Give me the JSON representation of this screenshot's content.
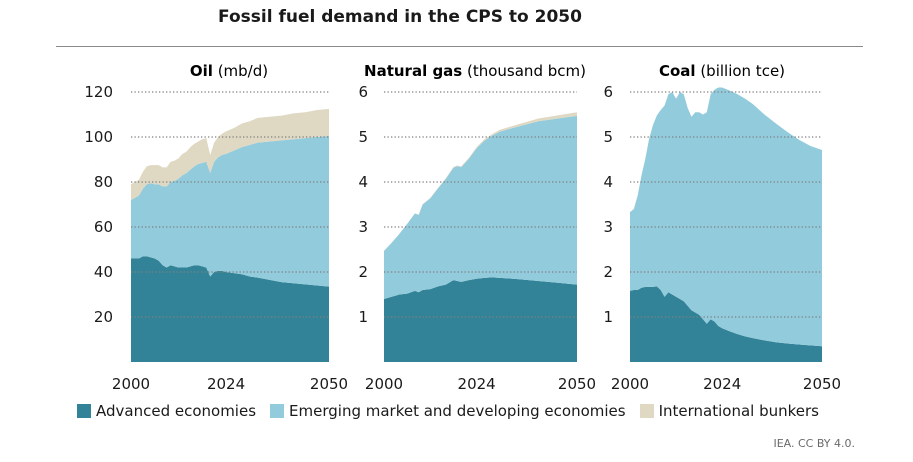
{
  "figure": {
    "title": "Fossil fuel demand in the CPS to 2050",
    "source": "IEA. CC BY 4.0."
  },
  "colors": {
    "advanced": "#338398",
    "emerging": "#92cbdc",
    "bunkers": "#dfd8c3",
    "grid": "#7f7f7f"
  },
  "chart_data": [
    {
      "type": "area",
      "title_bold": "Oil",
      "title_unit": "(mb/d)",
      "ylim": [
        0,
        120
      ],
      "yticks": [
        20,
        40,
        60,
        80,
        100,
        120
      ],
      "ytick_labels": [
        "20",
        "40",
        "60",
        "80",
        "100",
        "120"
      ],
      "xticks": [
        2000,
        2024,
        2050
      ],
      "xtick_labels": [
        "2000",
        "2024",
        "2050"
      ],
      "x": [
        2000,
        2001,
        2002,
        2003,
        2004,
        2005,
        2006,
        2007,
        2008,
        2009,
        2010,
        2011,
        2012,
        2013,
        2014,
        2015,
        2016,
        2017,
        2018,
        2019,
        2020,
        2021,
        2022,
        2023,
        2024,
        2026,
        2028,
        2030,
        2032,
        2035,
        2038,
        2041,
        2044,
        2047,
        2050
      ],
      "series": [
        {
          "name": "Advanced economies",
          "values": [
            46,
            46,
            46,
            47,
            47,
            46.5,
            46,
            45,
            43,
            42,
            43,
            42.5,
            42,
            42,
            42,
            42.5,
            43,
            43,
            42.5,
            42,
            38,
            40,
            40.5,
            40.5,
            40,
            39.5,
            39,
            38,
            37.5,
            36.5,
            35.5,
            35,
            34.5,
            34,
            33.5
          ]
        },
        {
          "name": "Emerging market and developing economies",
          "values": [
            26,
            27,
            28,
            30,
            32,
            33,
            33,
            34,
            35,
            36,
            37,
            38,
            39.5,
            41,
            42,
            43,
            44,
            45,
            46,
            47,
            46,
            49,
            50.5,
            51.5,
            52.5,
            54.5,
            56.5,
            58.5,
            60,
            61.5,
            63,
            64,
            65,
            66,
            67
          ]
        },
        {
          "name": "International bunkers",
          "values": [
            7,
            7,
            7,
            7.5,
            8,
            8,
            8.5,
            8.5,
            8.5,
            8.5,
            9,
            9,
            9,
            9.5,
            9.5,
            10,
            10,
            10,
            10.5,
            10.5,
            8,
            8.5,
            9,
            9.5,
            10,
            10,
            10.5,
            10.5,
            11,
            11,
            11,
            11.5,
            11.5,
            12,
            12
          ]
        }
      ]
    },
    {
      "type": "area",
      "title_bold": "Natural gas",
      "title_unit": "(thousand bcm)",
      "ylim": [
        0,
        6
      ],
      "yticks": [
        1,
        2,
        3,
        4,
        5,
        6
      ],
      "ytick_labels": [
        "1",
        "2",
        "3",
        "4",
        "5",
        "6"
      ],
      "xticks": [
        2000,
        2024,
        2050
      ],
      "xtick_labels": [
        "2000",
        "2024",
        "2050"
      ],
      "x": [
        2000,
        2002,
        2004,
        2006,
        2008,
        2009,
        2010,
        2012,
        2014,
        2016,
        2018,
        2019,
        2020,
        2022,
        2024,
        2026,
        2028,
        2030,
        2035,
        2040,
        2045,
        2050
      ],
      "series": [
        {
          "name": "Advanced economies",
          "values": [
            1.4,
            1.45,
            1.5,
            1.52,
            1.58,
            1.55,
            1.6,
            1.62,
            1.68,
            1.72,
            1.82,
            1.8,
            1.78,
            1.82,
            1.85,
            1.87,
            1.88,
            1.87,
            1.84,
            1.8,
            1.76,
            1.72
          ]
        },
        {
          "name": "Emerging market and developing economies",
          "values": [
            1.07,
            1.2,
            1.35,
            1.55,
            1.72,
            1.72,
            1.9,
            2.02,
            2.18,
            2.35,
            2.5,
            2.55,
            2.55,
            2.7,
            2.9,
            3.05,
            3.15,
            3.25,
            3.4,
            3.55,
            3.65,
            3.75
          ]
        },
        {
          "name": "International bunkers",
          "values": [
            0.001,
            0.001,
            0.002,
            0.003,
            0.004,
            0.005,
            0.006,
            0.008,
            0.01,
            0.012,
            0.015,
            0.016,
            0.016,
            0.02,
            0.025,
            0.03,
            0.035,
            0.04,
            0.05,
            0.06,
            0.07,
            0.08
          ]
        }
      ]
    },
    {
      "type": "area",
      "title_bold": "Coal",
      "title_unit": "(billion tce)",
      "ylim": [
        0,
        6
      ],
      "yticks": [
        1,
        2,
        3,
        4,
        5,
        6
      ],
      "ytick_labels": [
        "1",
        "2",
        "3",
        "4",
        "5",
        "6"
      ],
      "xticks": [
        2000,
        2024,
        2050
      ],
      "xtick_labels": [
        "2000",
        "2024",
        "2050"
      ],
      "x": [
        2000,
        2001,
        2002,
        2003,
        2004,
        2005,
        2006,
        2007,
        2008,
        2009,
        2010,
        2011,
        2012,
        2013,
        2014,
        2015,
        2016,
        2017,
        2018,
        2019,
        2020,
        2021,
        2022,
        2023,
        2024,
        2026,
        2028,
        2030,
        2032,
        2035,
        2038,
        2041,
        2044,
        2047,
        2050
      ],
      "series": [
        {
          "name": "Advanced economies",
          "values": [
            1.58,
            1.6,
            1.6,
            1.65,
            1.67,
            1.67,
            1.67,
            1.68,
            1.6,
            1.45,
            1.55,
            1.5,
            1.45,
            1.4,
            1.35,
            1.25,
            1.15,
            1.1,
            1.05,
            0.95,
            0.85,
            0.95,
            0.9,
            0.8,
            0.75,
            0.68,
            0.62,
            0.57,
            0.53,
            0.48,
            0.44,
            0.41,
            0.39,
            0.37,
            0.35
          ]
        },
        {
          "name": "Emerging market and developing economies",
          "values": [
            1.75,
            1.8,
            2.1,
            2.5,
            2.85,
            3.3,
            3.6,
            3.8,
            4.0,
            4.25,
            4.4,
            4.5,
            4.4,
            4.6,
            4.6,
            4.4,
            4.3,
            4.45,
            4.5,
            4.55,
            4.7,
            5.0,
            5.15,
            5.3,
            5.35,
            5.35,
            5.33,
            5.28,
            5.2,
            5.02,
            4.86,
            4.7,
            4.55,
            4.43,
            4.36
          ]
        },
        {
          "name": "International bunkers",
          "values": [
            0,
            0,
            0,
            0,
            0,
            0,
            0,
            0,
            0,
            0,
            0,
            0,
            0,
            0,
            0,
            0,
            0,
            0,
            0,
            0,
            0,
            0,
            0,
            0,
            0,
            0,
            0,
            0,
            0,
            0,
            0,
            0,
            0,
            0,
            0
          ]
        }
      ]
    }
  ],
  "legend": {
    "items": [
      {
        "label": "Advanced economies"
      },
      {
        "label": "Emerging market and developing economies"
      },
      {
        "label": "International bunkers"
      }
    ]
  }
}
